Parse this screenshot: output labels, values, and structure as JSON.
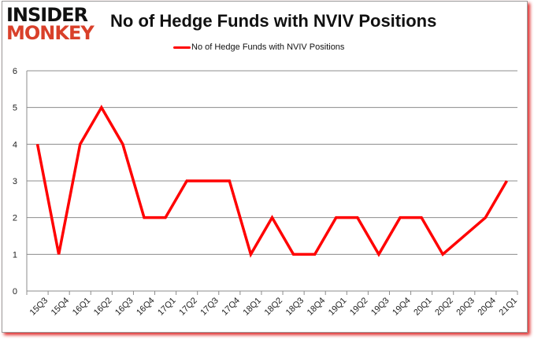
{
  "logo": {
    "line1": "INSIDER",
    "line2": "MONKEY"
  },
  "chart_data": {
    "type": "line",
    "title": "No of Hedge Funds with NVIV Positions",
    "xlabel": "",
    "ylabel": "",
    "categories": [
      "15Q3",
      "15Q4",
      "16Q1",
      "16Q2",
      "16Q3",
      "16Q4",
      "17Q1",
      "17Q2",
      "17Q3",
      "17Q4",
      "18Q1",
      "18Q2",
      "18Q3",
      "18Q4",
      "19Q1",
      "19Q2",
      "19Q3",
      "19Q4",
      "20Q1",
      "20Q2",
      "20Q3",
      "20Q4",
      "21Q1"
    ],
    "series": [
      {
        "name": "No of Hedge Funds with NVIV Positions",
        "color": "#ff0000",
        "values": [
          4,
          1,
          4,
          5,
          4,
          2,
          2,
          3,
          3,
          3,
          1,
          2,
          1,
          1,
          2,
          2,
          1,
          2,
          2,
          1,
          null,
          2,
          3
        ]
      }
    ],
    "ylim": [
      0,
      6
    ],
    "yticks": [
      0,
      1,
      2,
      3,
      4,
      5,
      6
    ],
    "grid": true,
    "legend": "top-center"
  }
}
